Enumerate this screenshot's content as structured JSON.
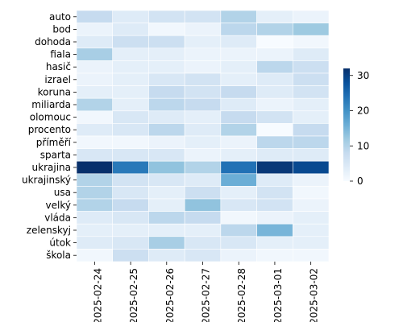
{
  "chart_data": {
    "type": "heatmap",
    "x": [
      "2025-02-24",
      "2025-02-25",
      "2025-02-26",
      "2025-02-27",
      "2025-02-28",
      "2025-03-01",
      "2025-03-02"
    ],
    "y": [
      "auto",
      "bod",
      "dohoda",
      "fiala",
      "hasič",
      "izrael",
      "koruna",
      "miliarda",
      "olomouc",
      "procento",
      "příměří",
      "sparta",
      "ukrajina",
      "ukrajinský",
      "usa",
      "velký",
      "vláda",
      "zelenskyj",
      "útok",
      "škola"
    ],
    "values": [
      [
        8,
        4,
        6,
        6,
        10,
        3,
        2
      ],
      [
        2,
        4,
        1,
        2,
        9,
        10,
        12
      ],
      [
        4,
        7,
        7,
        3,
        4,
        0,
        1
      ],
      [
        11,
        3,
        3,
        2,
        2,
        2,
        4
      ],
      [
        2,
        3,
        3,
        2,
        3,
        9,
        7
      ],
      [
        2,
        3,
        5,
        6,
        3,
        4,
        7
      ],
      [
        3,
        3,
        8,
        6,
        8,
        4,
        6
      ],
      [
        10,
        3,
        9,
        8,
        4,
        2,
        3
      ],
      [
        1,
        5,
        4,
        3,
        8,
        6,
        3
      ],
      [
        4,
        5,
        9,
        4,
        10,
        0,
        8
      ],
      [
        1,
        1,
        2,
        3,
        2,
        9,
        9
      ],
      [
        5,
        5,
        5,
        2,
        3,
        4,
        4
      ],
      [
        32,
        23,
        13,
        10,
        24,
        31,
        29
      ],
      [
        10,
        6,
        5,
        4,
        16,
        4,
        2
      ],
      [
        10,
        5,
        3,
        7,
        3,
        6,
        1
      ],
      [
        10,
        8,
        3,
        13,
        5,
        6,
        2
      ],
      [
        4,
        5,
        9,
        8,
        1,
        2,
        3
      ],
      [
        3,
        3,
        3,
        3,
        9,
        15,
        3
      ],
      [
        4,
        5,
        11,
        5,
        5,
        3,
        3
      ],
      [
        1,
        7,
        4,
        5,
        2,
        1,
        1
      ]
    ],
    "colorbar": {
      "min": 0,
      "max": 32,
      "ticks": [
        0,
        10,
        20,
        30
      ]
    },
    "grid": false,
    "cell_border_color": "#ffffff",
    "colormap": "Blues",
    "title": "",
    "xlabel": "",
    "ylabel": ""
  }
}
